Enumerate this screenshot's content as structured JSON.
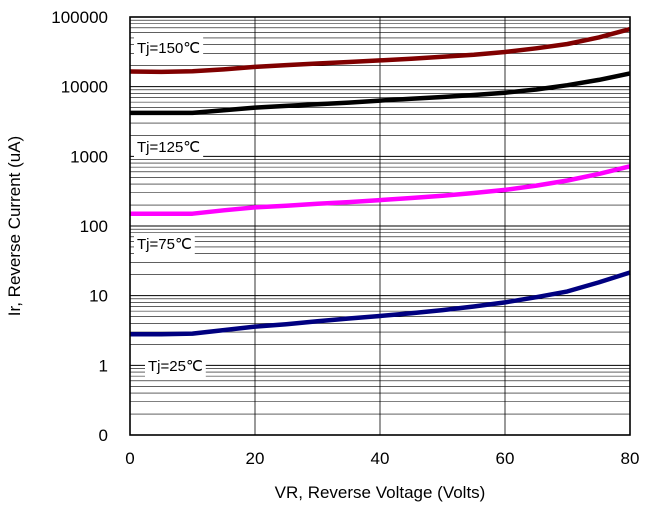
{
  "chart_data": {
    "type": "line",
    "title": "",
    "xlabel": "VR, Reverse Voltage (Volts)",
    "ylabel": "Ir, Reverse Current (uA)",
    "xlim": [
      0,
      80
    ],
    "y_scale": "log",
    "x_ticks": [
      0,
      20,
      40,
      60,
      80
    ],
    "x_tick_labels": [
      "0",
      "20",
      "40",
      "60",
      "80"
    ],
    "y_ticks": [
      0,
      1,
      10,
      100,
      1000,
      10000,
      100000
    ],
    "y_tick_labels": [
      "0",
      "1",
      "10",
      "100",
      "1000",
      "10000",
      "100000"
    ],
    "grid": true,
    "series": [
      {
        "name": "Tj=150℃",
        "color": "#800000",
        "x": [
          0,
          5,
          10,
          15,
          20,
          25,
          30,
          35,
          40,
          45,
          50,
          55,
          60,
          65,
          70,
          75,
          80
        ],
        "y": [
          16500,
          16300,
          16600,
          17700,
          19200,
          20400,
          21500,
          22600,
          23800,
          25100,
          26800,
          28700,
          31500,
          35500,
          41000,
          51000,
          67000
        ]
      },
      {
        "name": "Tj=125℃",
        "color": "#000000",
        "x": [
          0,
          5,
          10,
          15,
          20,
          25,
          30,
          35,
          40,
          45,
          50,
          55,
          60,
          65,
          70,
          75,
          80
        ],
        "y": [
          4200,
          4200,
          4200,
          4600,
          5000,
          5300,
          5600,
          5900,
          6300,
          6700,
          7100,
          7600,
          8200,
          9100,
          10500,
          12500,
          15500
        ]
      },
      {
        "name": "Tj=75℃",
        "color": "#ff00ff",
        "x": [
          0,
          5,
          10,
          15,
          20,
          25,
          30,
          35,
          40,
          45,
          50,
          55,
          60,
          65,
          70,
          75,
          80
        ],
        "y": [
          150,
          150,
          150,
          168,
          185,
          195,
          208,
          220,
          235,
          252,
          272,
          298,
          330,
          380,
          450,
          560,
          720
        ]
      },
      {
        "name": "Tj=25℃",
        "color": "#000080",
        "x": [
          0,
          5,
          10,
          15,
          20,
          25,
          30,
          35,
          40,
          45,
          50,
          55,
          60,
          65,
          70,
          75,
          80
        ],
        "y": [
          2.8,
          2.8,
          2.85,
          3.2,
          3.6,
          3.9,
          4.3,
          4.7,
          5.1,
          5.6,
          6.2,
          7.0,
          8.0,
          9.5,
          11.5,
          15.5,
          21.5
        ]
      }
    ]
  }
}
